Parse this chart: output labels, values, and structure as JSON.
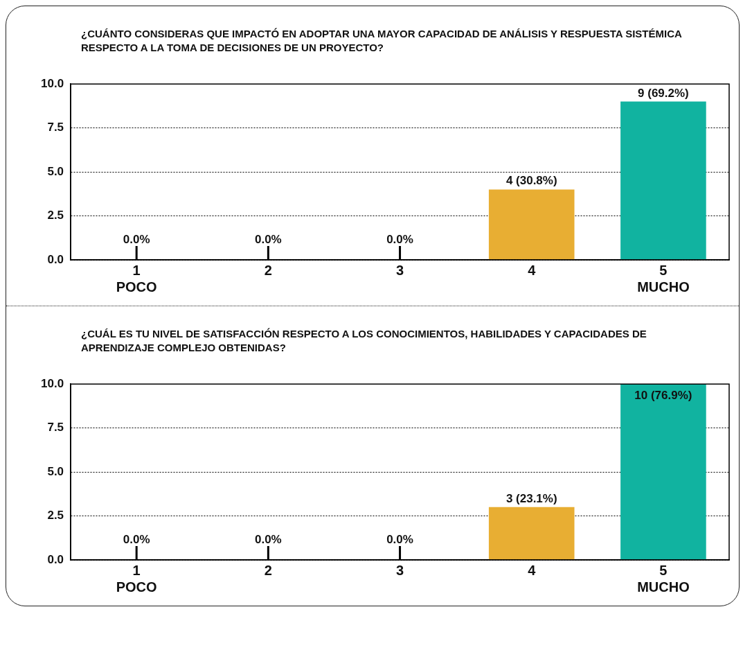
{
  "chart_data": [
    {
      "type": "bar",
      "title": "¿CUÁNTO CONSIDERAS QUE IMPACTÓ EN ADOPTAR UNA MAYOR CAPACIDAD DE ANÁLISIS Y RESPUESTA SISTÉMICA RESPECTO A LA TOMA DE DECISIONES DE UN PROYECTO?",
      "categories": [
        "1\nPOCO",
        "2",
        "3",
        "4",
        "5\nMUCHO"
      ],
      "values": [
        0,
        0,
        0,
        4,
        9
      ],
      "colors": [
        "#000000",
        "#000000",
        "#000000",
        "#e8ae33",
        "#11b3a0"
      ],
      "value_labels": [
        "0.0%",
        "0.0%",
        "0.0%",
        "4 (30.8%)",
        "9 (69.2%)"
      ],
      "ylim": [
        0,
        10
      ],
      "yticks": [
        {
          "value": 0,
          "label": "0.0"
        },
        {
          "value": 2.5,
          "label": "2.5"
        },
        {
          "value": 5,
          "label": "5.0"
        },
        {
          "value": 7.5,
          "label": "7.5"
        },
        {
          "value": 10,
          "label": "10.0"
        }
      ],
      "grid": "y",
      "legend": false
    },
    {
      "type": "bar",
      "title": "¿CUÁL ES TU NIVEL DE SATISFACCIÓN RESPECTO A LOS CONOCIMIENTOS, HABILIDADES Y CAPACIDADES DE APRENDIZAJE COMPLEJO OBTENIDAS?",
      "categories": [
        "1\nPOCO",
        "2",
        "3",
        "4",
        "5\nMUCHO"
      ],
      "values": [
        0,
        0,
        0,
        3,
        10
      ],
      "colors": [
        "#000000",
        "#000000",
        "#000000",
        "#e8ae33",
        "#11b3a0"
      ],
      "value_labels": [
        "0.0%",
        "0.0%",
        "0.0%",
        "3 (23.1%)",
        "10 (76.9%)"
      ],
      "ylim": [
        0,
        10
      ],
      "yticks": [
        {
          "value": 0,
          "label": "0.0"
        },
        {
          "value": 2.5,
          "label": "2.5"
        },
        {
          "value": 5,
          "label": "5.0"
        },
        {
          "value": 7.5,
          "label": "7.5"
        },
        {
          "value": 10,
          "label": "10.0"
        }
      ],
      "grid": "y",
      "legend": false
    }
  ]
}
